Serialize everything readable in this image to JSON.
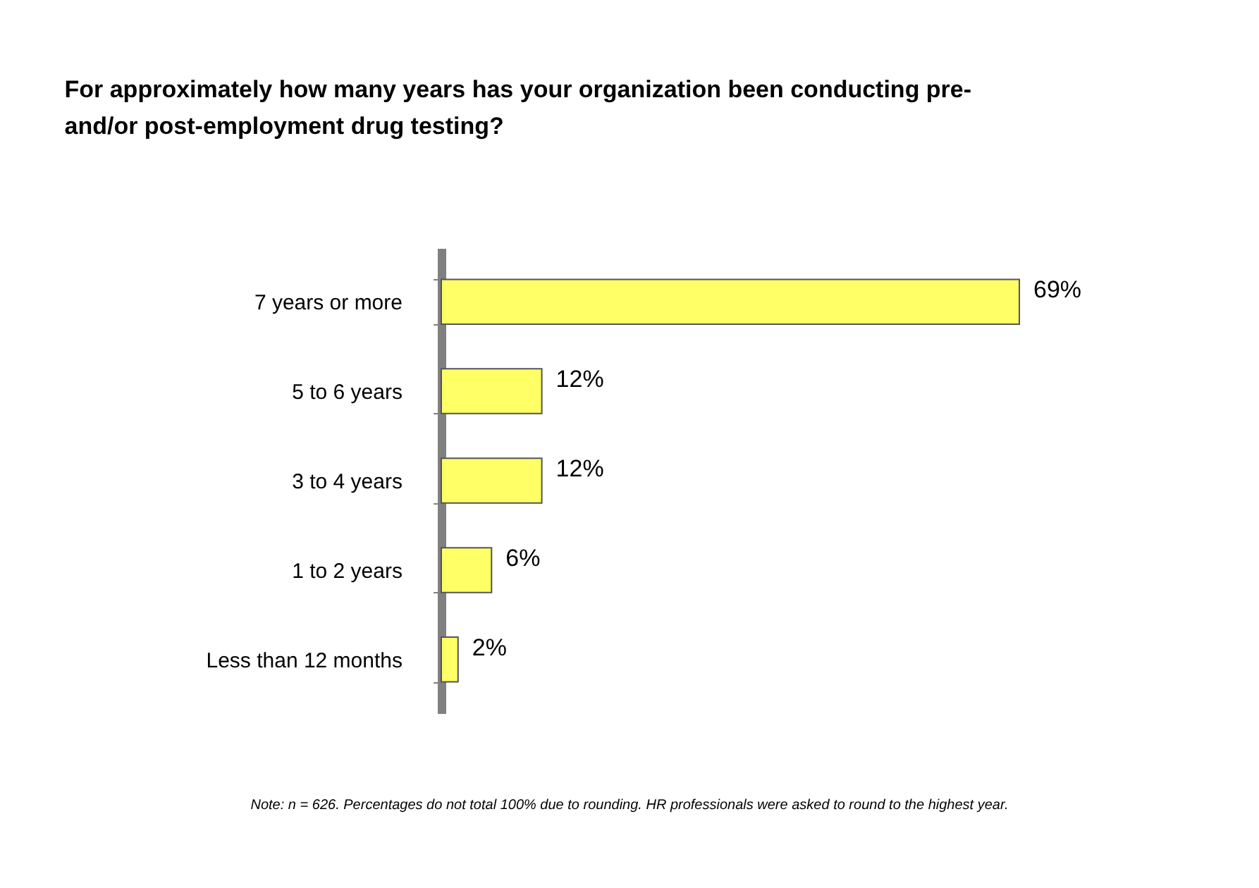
{
  "chart_data": {
    "type": "bar",
    "orientation": "horizontal",
    "title": "For approximately how many years has your organization been conducting pre- and/or post-employment drug testing?",
    "categories": [
      "7 years or more",
      "5 to 6 years",
      "3 to 4 years",
      "1 to 2 years",
      "Less than 12 months"
    ],
    "values": [
      69,
      12,
      12,
      6,
      2
    ],
    "color": "#ffff66",
    "data_labels": true,
    "value_labels": [
      "69%",
      "12%",
      "12%",
      "6%",
      "2%"
    ],
    "annotations": [
      "Note: n = 626. Percentages do not total 100% due to rounding. HR professionals were asked to round to the highest year."
    ]
  }
}
